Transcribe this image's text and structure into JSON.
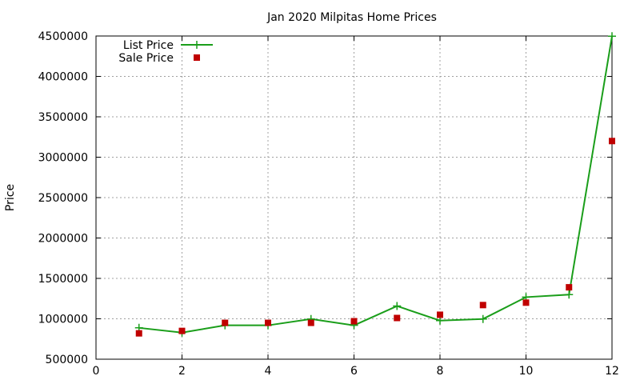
{
  "chart_data": {
    "type": "line",
    "title": "Jan 2020 Milpitas Home Prices",
    "xlabel": "",
    "ylabel": "Price",
    "xlim": [
      0,
      12
    ],
    "ylim": [
      500000,
      4500000
    ],
    "x_ticks": [
      0,
      2,
      4,
      6,
      8,
      10,
      12
    ],
    "y_ticks": [
      500000,
      1000000,
      1500000,
      2000000,
      2500000,
      3000000,
      3500000,
      4000000,
      4500000
    ],
    "grid": true,
    "legend_position": "top-left",
    "series": [
      {
        "name": "List Price",
        "style": "linespoints",
        "marker": "plus",
        "color": "#1a9e1a",
        "x": [
          1,
          2,
          3,
          4,
          5,
          6,
          7,
          8,
          9,
          10,
          11,
          12
        ],
        "values": [
          888000,
          829000,
          919000,
          919000,
          998000,
          919000,
          1158000,
          978000,
          998000,
          1268000,
          1299000,
          4498000
        ]
      },
      {
        "name": "Sale Price",
        "style": "points",
        "marker": "square",
        "color": "#c00000",
        "x": [
          1,
          2,
          3,
          4,
          5,
          6,
          7,
          8,
          9,
          10,
          11,
          12
        ],
        "values": [
          820000,
          850000,
          950000,
          950000,
          950000,
          970000,
          1010000,
          1050000,
          1170000,
          1200000,
          1390000,
          3200000
        ]
      }
    ]
  }
}
